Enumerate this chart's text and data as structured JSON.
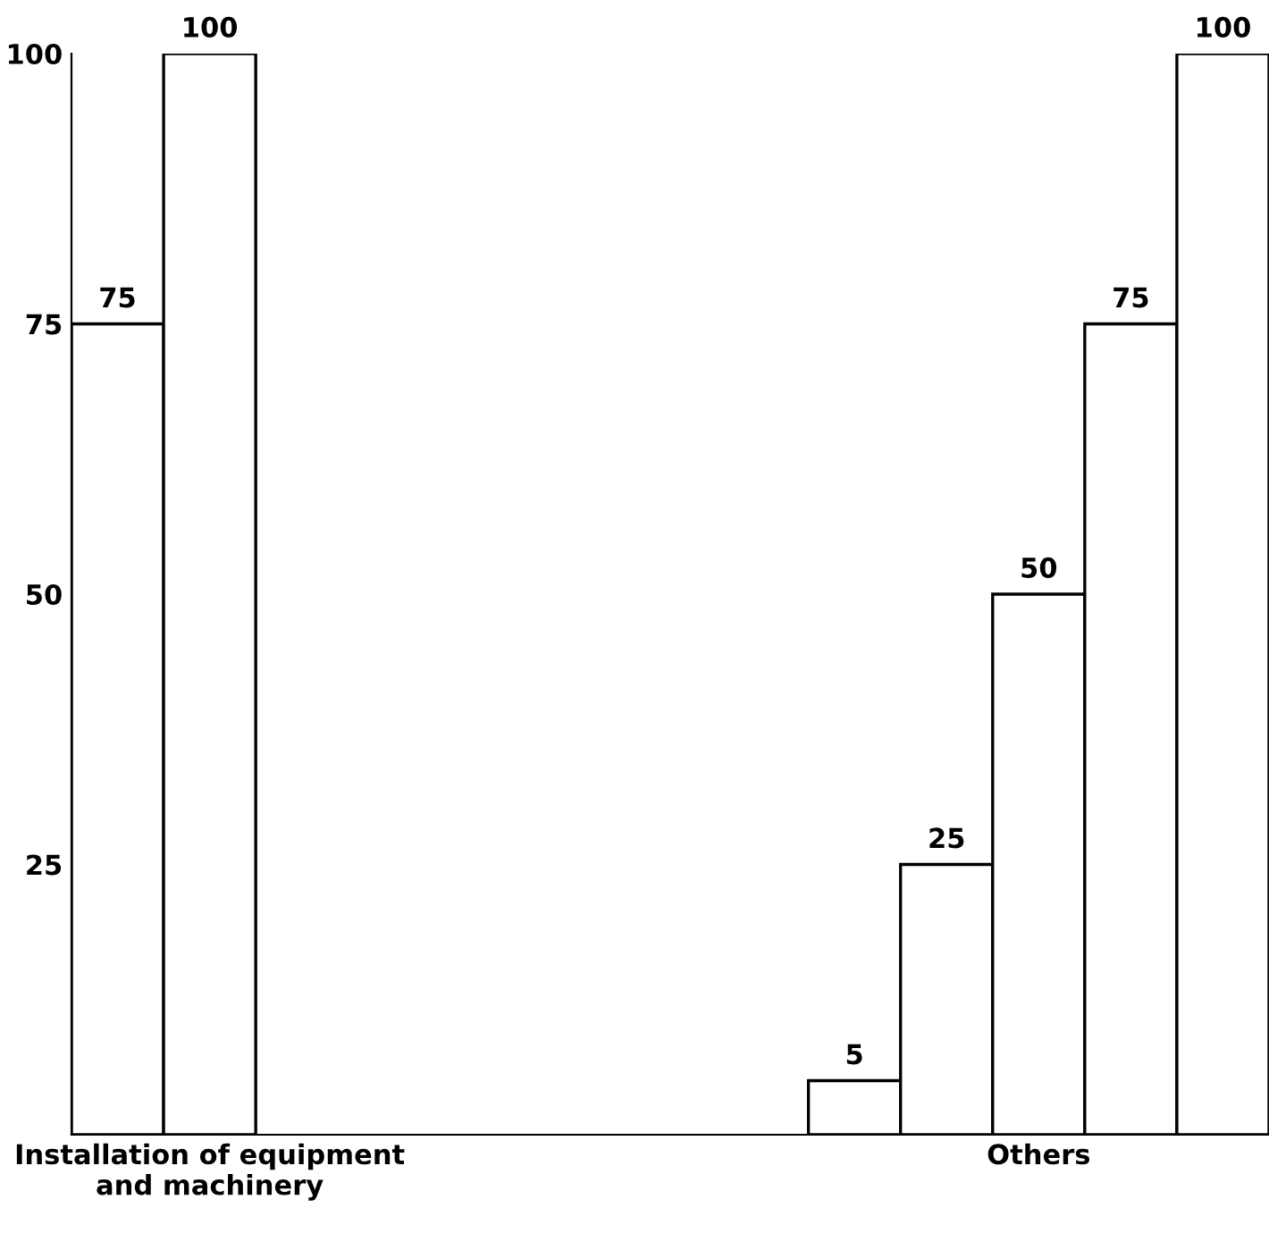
{
  "chart_data": {
    "type": "bar",
    "categories": [
      null,
      "Installation of equipment\nand machinery",
      null,
      null,
      null,
      null,
      null,
      null,
      null,
      null,
      "Others",
      null,
      null
    ],
    "values": [
      75,
      100,
      null,
      null,
      null,
      null,
      null,
      null,
      5,
      25,
      50,
      75,
      100
    ],
    "color": "#ffffff",
    "ylim": [
      0,
      100
    ],
    "yticks": [
      25,
      50,
      75,
      100
    ],
    "data_labels": true,
    "grid": false,
    "legend": false
  }
}
